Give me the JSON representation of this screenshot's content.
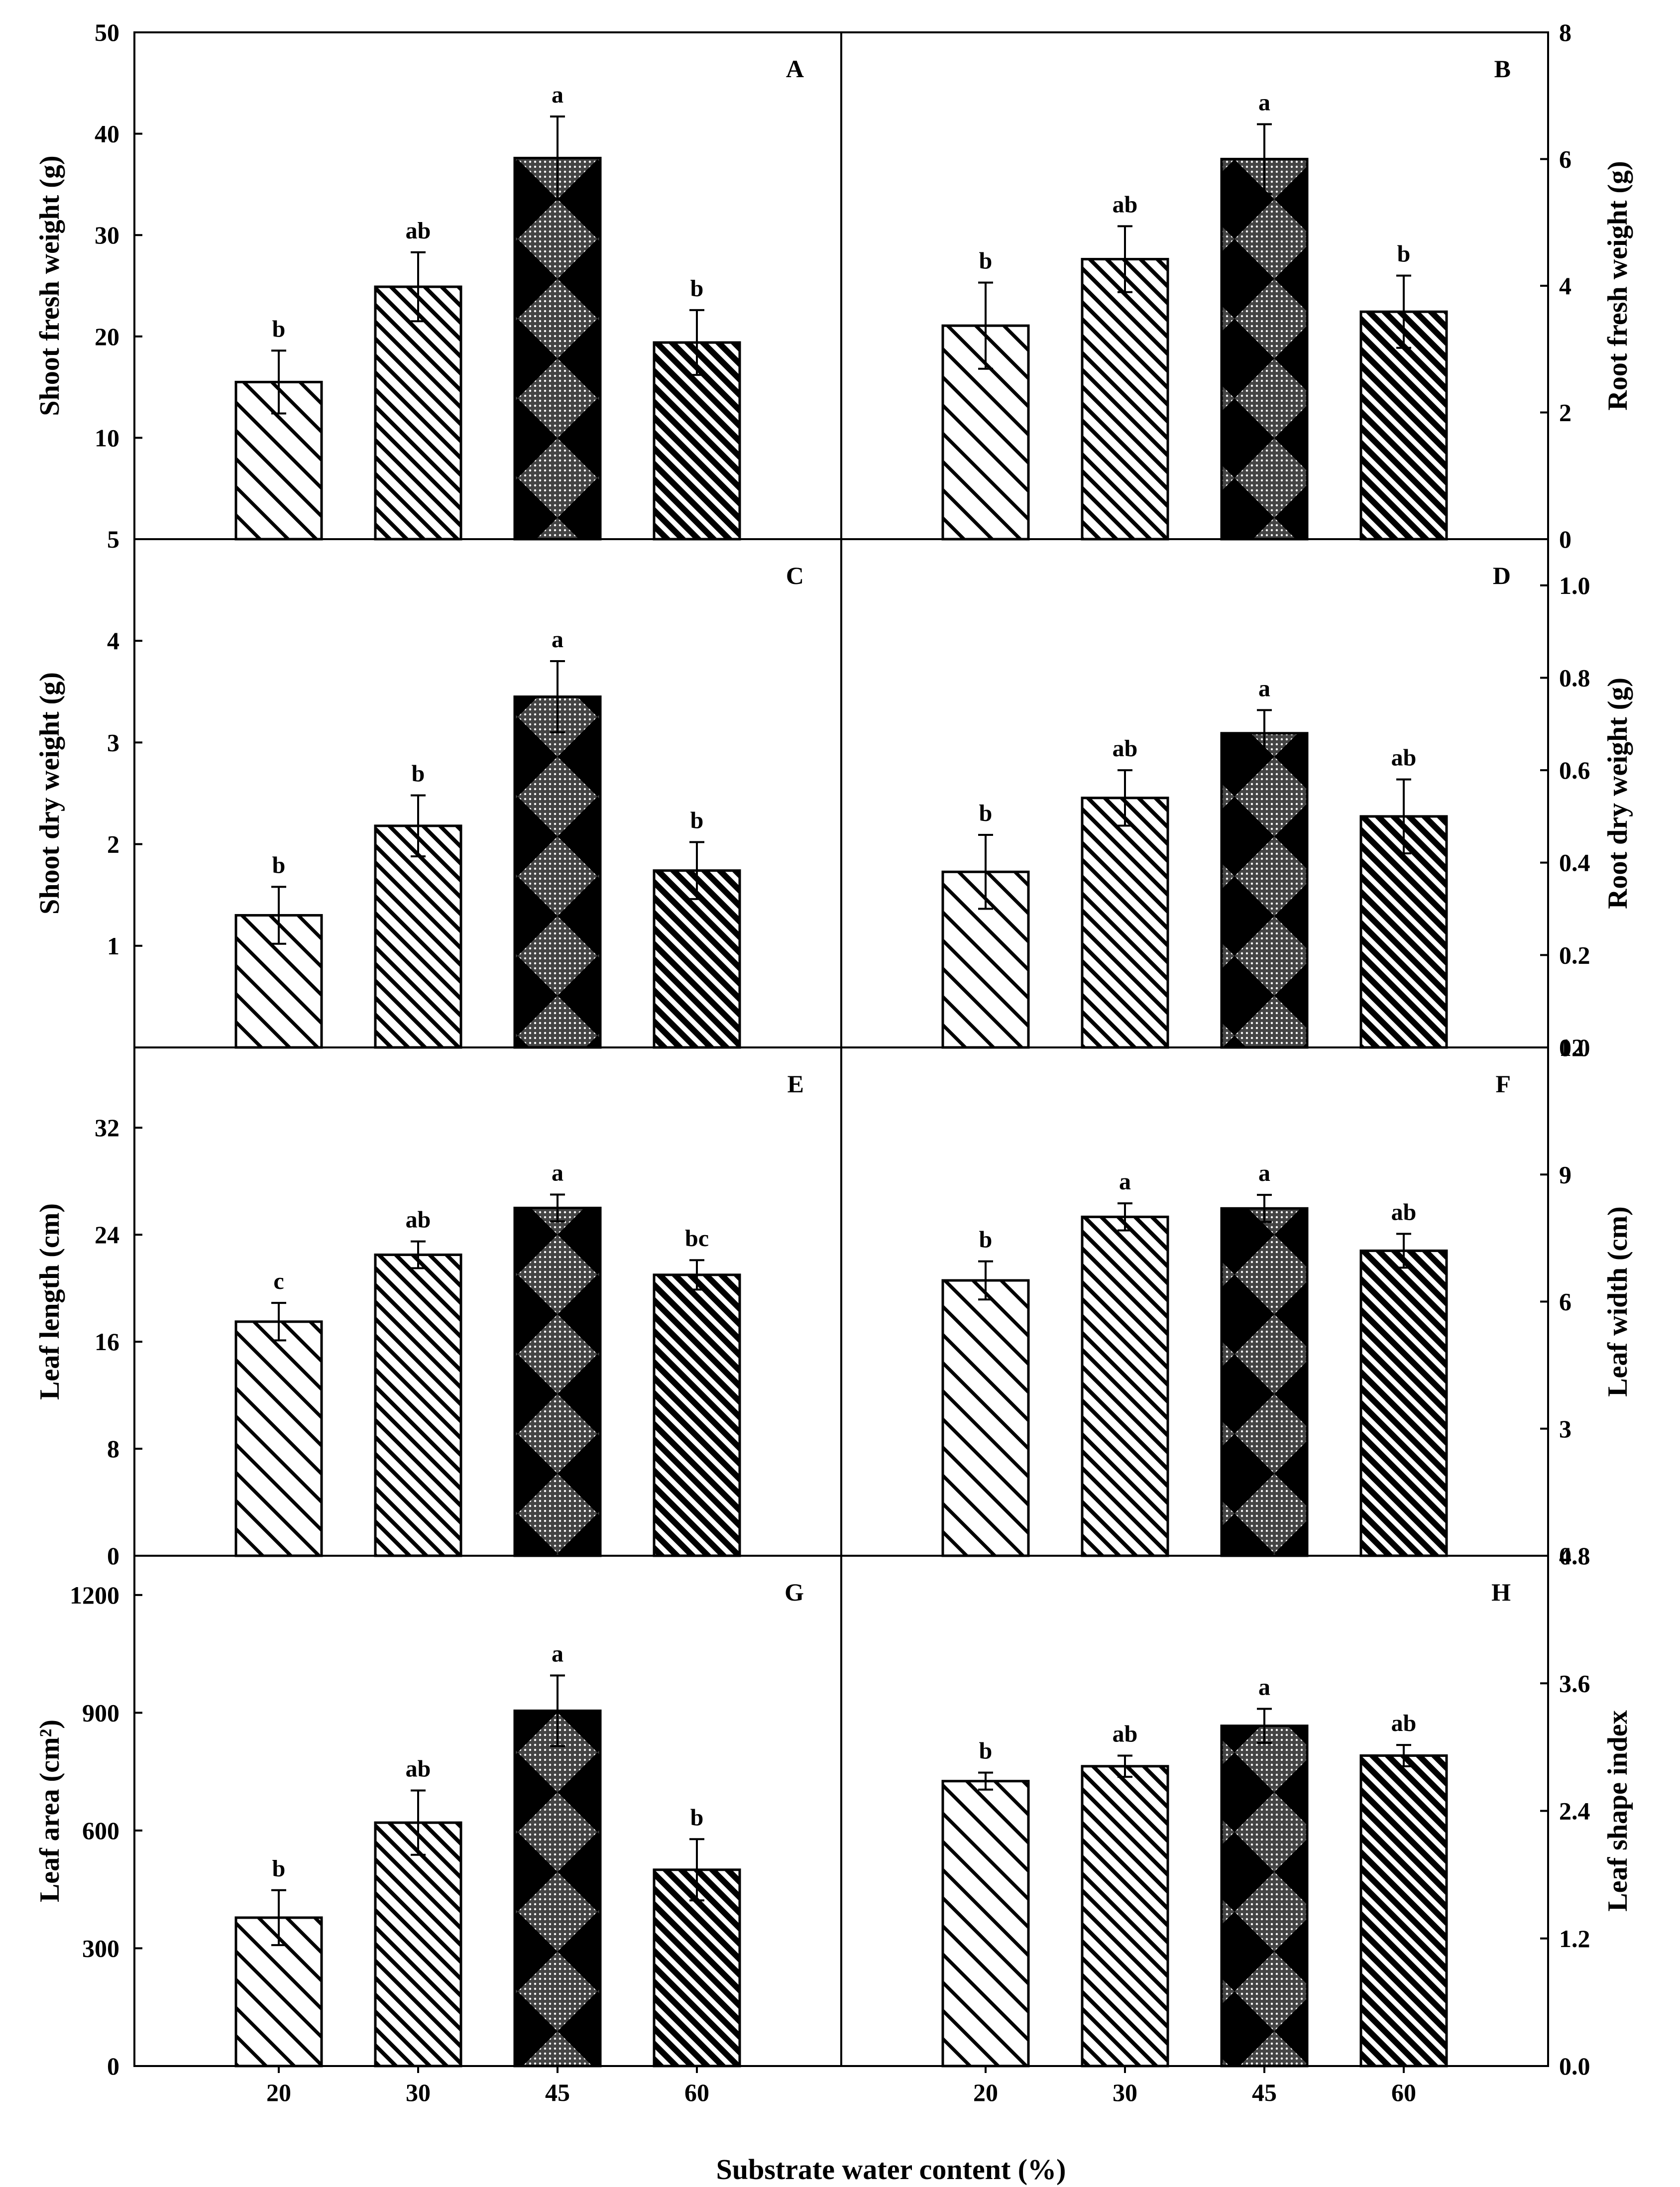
{
  "xlabel": "Substrate water content (%)",
  "categories": [
    "20",
    "30",
    "45",
    "60"
  ],
  "colors": {
    "ink": "#000000",
    "paper": "#ffffff"
  },
  "chart_data": [
    {
      "panel": "A",
      "type": "bar",
      "ylabel": "Shoot fresh weight (g)",
      "axis_side": "left",
      "ylim": [
        0,
        50
      ],
      "yticks": [
        10,
        20,
        30,
        40,
        50
      ],
      "ytick_labels": [
        "10",
        "20",
        "30",
        "40",
        "50"
      ],
      "values": [
        15.5,
        24.9,
        37.6,
        19.4
      ],
      "errors": [
        3.1,
        3.4,
        4.1,
        3.2
      ],
      "significance": [
        "b",
        "ab",
        "a",
        "b"
      ]
    },
    {
      "panel": "B",
      "type": "bar",
      "ylabel": "Root fresh weight (g)",
      "axis_side": "right",
      "ylim": [
        0,
        8
      ],
      "yticks": [
        0,
        2,
        4,
        6,
        8
      ],
      "ytick_labels": [
        "0",
        "2",
        "4",
        "6",
        "8"
      ],
      "values": [
        3.37,
        4.42,
        6.0,
        3.59
      ],
      "errors": [
        0.68,
        0.52,
        0.55,
        0.57
      ],
      "significance": [
        "b",
        "ab",
        "a",
        "b"
      ]
    },
    {
      "panel": "C",
      "type": "bar",
      "ylabel": "Shoot dry weight (g)",
      "axis_side": "left",
      "ylim": [
        0,
        5
      ],
      "yticks": [
        1,
        2,
        3,
        4,
        5
      ],
      "ytick_labels": [
        "1",
        "2",
        "3",
        "4",
        "5"
      ],
      "values": [
        1.3,
        2.18,
        3.45,
        1.74
      ],
      "errors": [
        0.28,
        0.3,
        0.35,
        0.28
      ],
      "significance": [
        "b",
        "b",
        "a",
        "b"
      ]
    },
    {
      "panel": "D",
      "type": "bar",
      "ylabel": "Root dry weight (g)",
      "axis_side": "right",
      "ylim": [
        0,
        1.1
      ],
      "yticks": [
        0,
        0.2,
        0.4,
        0.6,
        0.8,
        1.0
      ],
      "ytick_labels": [
        "0.0",
        "0.2",
        "0.4",
        "0.6",
        "0.8",
        "1.0"
      ],
      "values": [
        0.38,
        0.54,
        0.68,
        0.5
      ],
      "errors": [
        0.08,
        0.06,
        0.05,
        0.08
      ],
      "significance": [
        "b",
        "ab",
        "a",
        "ab"
      ]
    },
    {
      "panel": "E",
      "type": "bar",
      "ylabel": "Leaf length (cm)",
      "axis_side": "left",
      "ylim": [
        0,
        38
      ],
      "yticks": [
        0,
        8,
        16,
        24,
        32
      ],
      "ytick_labels": [
        "0",
        "8",
        "16",
        "24",
        "32"
      ],
      "values": [
        17.5,
        22.5,
        26.0,
        21.0
      ],
      "errors": [
        1.4,
        1.0,
        1.0,
        1.1
      ],
      "significance": [
        "c",
        "ab",
        "a",
        "bc"
      ]
    },
    {
      "panel": "F",
      "type": "bar",
      "ylabel": "Leaf width (cm)",
      "axis_side": "right",
      "ylim": [
        0,
        12
      ],
      "yticks": [
        0,
        3,
        6,
        9,
        12
      ],
      "ytick_labels": [
        "0",
        "3",
        "6",
        "9",
        "12"
      ],
      "values": [
        6.5,
        8.0,
        8.2,
        7.2
      ],
      "errors": [
        0.45,
        0.32,
        0.32,
        0.4
      ],
      "significance": [
        "b",
        "a",
        "a",
        "ab"
      ]
    },
    {
      "panel": "G",
      "type": "bar",
      "ylabel": "Leaf area (cm²)",
      "axis_side": "left",
      "ylim": [
        0,
        1300
      ],
      "yticks": [
        0,
        300,
        600,
        900,
        1200
      ],
      "ytick_labels": [
        "0",
        "300",
        "600",
        "900",
        "1200"
      ],
      "values": [
        378,
        620,
        905,
        500
      ],
      "errors": [
        70,
        82,
        90,
        78
      ],
      "significance": [
        "b",
        "ab",
        "a",
        "b"
      ]
    },
    {
      "panel": "H",
      "type": "bar",
      "ylabel": "Leaf shape index",
      "axis_side": "right",
      "ylim": [
        0,
        4.8
      ],
      "yticks": [
        0,
        1.2,
        2.4,
        3.6,
        4.8
      ],
      "ytick_labels": [
        "0.0",
        "1.2",
        "2.4",
        "3.6",
        "4.8"
      ],
      "values": [
        2.68,
        2.82,
        3.2,
        2.92
      ],
      "errors": [
        0.08,
        0.1,
        0.16,
        0.1
      ],
      "significance": [
        "b",
        "ab",
        "a",
        "ab"
      ]
    }
  ]
}
